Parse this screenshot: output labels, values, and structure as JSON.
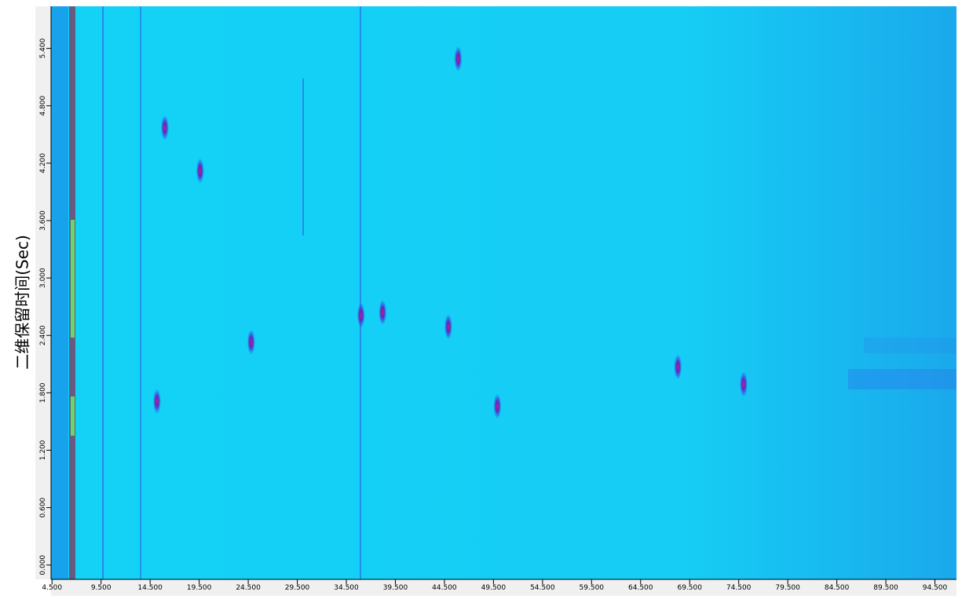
{
  "chart_data": {
    "type": "contour",
    "y_label": "二维保留时间(Sec)",
    "xlim": [
      4.4,
      96.7
    ],
    "ylim": [
      -0.15,
      5.84
    ],
    "xticks": [
      {
        "value": 4.5,
        "label": "4.500"
      },
      {
        "value": 9.5,
        "label": "9.500"
      },
      {
        "value": 14.5,
        "label": "14.500"
      },
      {
        "value": 19.5,
        "label": "19.500"
      },
      {
        "value": 24.5,
        "label": "24.500"
      },
      {
        "value": 29.5,
        "label": "29.500"
      },
      {
        "value": 34.5,
        "label": "34.500"
      },
      {
        "value": 39.5,
        "label": "39.500"
      },
      {
        "value": 44.5,
        "label": "44.500"
      },
      {
        "value": 49.5,
        "label": "49.500"
      },
      {
        "value": 54.5,
        "label": "54.500"
      },
      {
        "value": 59.5,
        "label": "59.500"
      },
      {
        "value": 64.5,
        "label": "64.500"
      },
      {
        "value": 69.5,
        "label": "69.500"
      },
      {
        "value": 74.5,
        "label": "74.500"
      },
      {
        "value": 79.5,
        "label": "79.500"
      },
      {
        "value": 84.5,
        "label": "84.500"
      },
      {
        "value": 89.5,
        "label": "89.500"
      },
      {
        "value": 94.5,
        "label": "94.500"
      }
    ],
    "yticks": [
      {
        "value": 0,
        "label": "0.000"
      },
      {
        "value": 0.6,
        "label": "0.600"
      },
      {
        "value": 1.2,
        "label": "1.200"
      },
      {
        "value": 1.8,
        "label": "1.800"
      },
      {
        "value": 2.4,
        "label": "2.400"
      },
      {
        "value": 3.0,
        "label": "3.000"
      },
      {
        "value": 3.6,
        "label": "3.600"
      },
      {
        "value": 4.2,
        "label": "4.200"
      },
      {
        "value": 4.8,
        "label": "4.800"
      },
      {
        "value": 5.4,
        "label": "5.400"
      }
    ],
    "peaks": {
      "x": [
        38.2,
        68.3,
        75.0,
        15.2,
        16.0,
        19.6,
        49.9,
        45.9,
        36.0,
        24.8,
        44.9
      ],
      "y": [
        2.64,
        2.07,
        1.89,
        1.71,
        4.57,
        4.12,
        1.66,
        5.29,
        2.61,
        2.33,
        2.49
      ]
    }
  }
}
